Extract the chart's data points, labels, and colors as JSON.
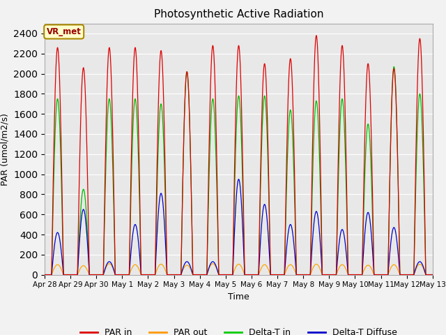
{
  "title": "Photosynthetic Active Radiation",
  "xlabel": "Time",
  "ylabel": "PAR (umol/m2/s)",
  "ylim": [
    0,
    2500
  ],
  "yticks": [
    0,
    200,
    400,
    600,
    800,
    1000,
    1200,
    1400,
    1600,
    1800,
    2000,
    2200,
    2400
  ],
  "legend_labels": [
    "PAR in",
    "PAR out",
    "Delta-T in",
    "Delta-T Diffuse"
  ],
  "legend_colors": [
    "#dd0000",
    "#ff9900",
    "#00cc00",
    "#0000cc"
  ],
  "annotation_text": "VR_met",
  "annotation_bg": "#ffffcc",
  "annotation_border": "#aa8800",
  "fig_bg": "#f2f2f2",
  "plot_bg": "#e8e8e8",
  "n_days": 15,
  "colors": {
    "par_in": "#dd0000",
    "par_out": "#ffa500",
    "delta_t_in": "#00bb00",
    "delta_t_diffuse": "#0000cc"
  },
  "par_in_peaks": [
    2260,
    2060,
    2260,
    2260,
    2230,
    2020,
    2280,
    2280,
    2100,
    2150,
    2380,
    2280,
    2100,
    2050,
    2350
  ],
  "par_out_peaks": [
    100,
    90,
    110,
    100,
    105,
    95,
    110,
    105,
    100,
    100,
    105,
    100,
    95,
    100,
    105
  ],
  "delta_t_in_peaks": [
    1750,
    850,
    1750,
    1750,
    1700,
    2020,
    1750,
    1780,
    1780,
    1640,
    1730,
    1750,
    1500,
    2070,
    1800
  ],
  "delta_t_diff_peaks": [
    420,
    650,
    130,
    500,
    810,
    130,
    130,
    950,
    700,
    500,
    630,
    450,
    620,
    470,
    130
  ],
  "xtick_labels": [
    "Apr 28",
    "Apr 29",
    "Apr 30",
    "May 1",
    "May 2",
    "May 3",
    "May 4",
    "May 5",
    "May 6",
    "May 7",
    "May 8",
    "May 9",
    "May 10",
    "May 11",
    "May 12",
    "May 13"
  ]
}
